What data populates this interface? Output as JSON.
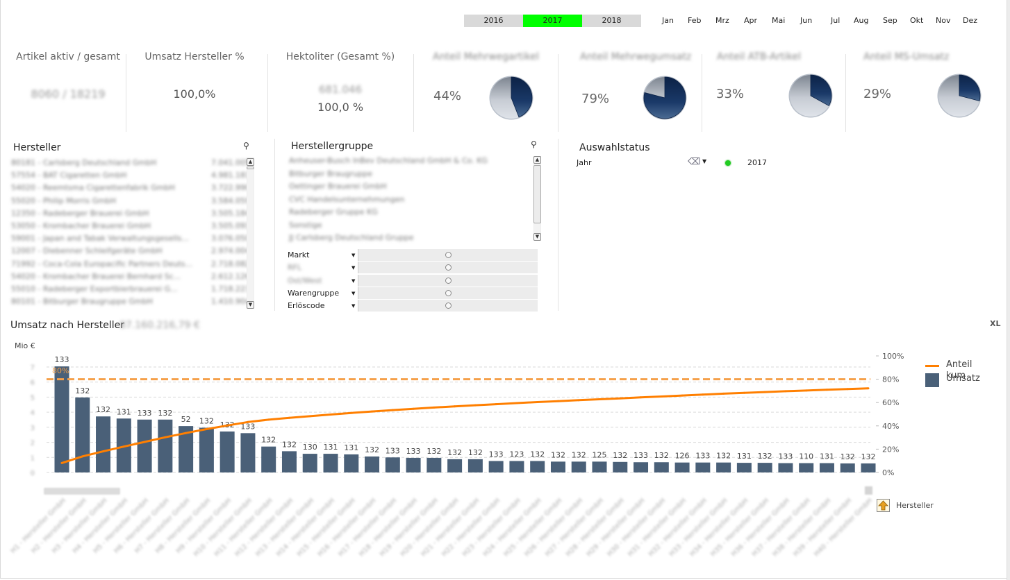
{
  "years": [
    {
      "label": "2016",
      "active": false
    },
    {
      "label": "2017",
      "active": true
    },
    {
      "label": "2018",
      "active": false
    }
  ],
  "months": [
    "Jan",
    "Feb",
    "Mrz",
    "Apr",
    "Mai",
    "Jun",
    "Jul",
    "Aug",
    "Sep",
    "Okt",
    "Nov",
    "Dez"
  ],
  "kpis": {
    "artikel": {
      "title": "Artikel aktiv / gesamt",
      "value": "8060 / 18219"
    },
    "umsatz": {
      "title": "Umsatz Hersteller %",
      "value": "100,0%"
    },
    "hektoliter": {
      "title": "Hektoliter (Gesamt %)",
      "value_blurred": "681.046",
      "value": "100,0 %"
    }
  },
  "pie_kpis": [
    {
      "title": "Anteil Mehrwegartikel",
      "percent_label": "44%",
      "share": 0.44
    },
    {
      "title": "Anteil Mehrwegumsatz",
      "percent_label": "79%",
      "share": 0.79
    },
    {
      "title": "Anteil ATB-Artikel",
      "percent_label": "33%",
      "share": 0.33
    },
    {
      "title": "Anteil MS-Umsatz",
      "percent_label": "29%",
      "share": 0.29
    }
  ],
  "pie_colors": {
    "dark": "#0f2a52",
    "light": "#d6dbe3"
  },
  "hersteller": {
    "title": "Hersteller",
    "items": [
      {
        "name": "80181 - Carlsberg Deutschland GmbH",
        "value": "7.041.005"
      },
      {
        "name": "57554 - BAT Cigaretten GmbH",
        "value": "4.981.181"
      },
      {
        "name": "54020 - Reemtsma Cigarettenfabrik GmbH",
        "value": "3.722.990"
      },
      {
        "name": "55020 - Philip Morris GmbH",
        "value": "3.584.059"
      },
      {
        "name": "12350 - Radeberger Brauerei GmbH",
        "value": "3.505.184"
      },
      {
        "name": "53050 - Krombacher Brauerei GmbH",
        "value": "3.505.091"
      },
      {
        "name": "59001 - Japan and Tabak Verwaltungsgesells...",
        "value": "3.076.050"
      },
      {
        "name": "12007 - Diebenner Schleifgeräte GmbH",
        "value": "2.974.004"
      },
      {
        "name": "71992 - Coca-Cola Europacific Partners Deuts...",
        "value": "2.718.082"
      },
      {
        "name": "54020 - Krombacher Brauerei Bernhard Sc...",
        "value": "2.612.126"
      },
      {
        "name": "55010 - Radeberger Exportbierbrauerei G...",
        "value": "1.718.223"
      },
      {
        "name": "80101 - Bitburger Braugruppe GmbH",
        "value": "1.410.904"
      }
    ]
  },
  "herstellergruppe": {
    "title": "Herstellergruppe",
    "items": [
      "Anheuser-Busch InBev Deutschland GmbH & Co. KG",
      "Bitburger Braugruppe",
      "Oettinger Brauerei GmbH",
      "CVC Handelsunternehmungen",
      "Radeberger Gruppe KG",
      "Sonstige",
      "JJ Carlsberg Deutschland Gruppe"
    ]
  },
  "filters": [
    {
      "label": "Markt",
      "blurred": false
    },
    {
      "label": "RFL",
      "blurred": true
    },
    {
      "label": "Ost/West",
      "blurred": true
    },
    {
      "label": "Warengruppe",
      "blurred": false
    },
    {
      "label": "Erlöscode",
      "blurred": false
    }
  ],
  "auswahlstatus": {
    "title": "Auswahlstatus",
    "field": "Jahr",
    "value": "2017",
    "indicator_color": "#22cc22"
  },
  "chart": {
    "title": "Umsatz nach Hersteller",
    "title_value": "87.160.216,79 €",
    "unit_label": "Mio  €",
    "xl_label": "XL",
    "dimension_label": "Hersteller"
  },
  "chart_data": {
    "type": "bar",
    "title": "Umsatz nach Hersteller",
    "xlabel": "Hersteller",
    "ylabel": "Mio €",
    "ylim": [
      0,
      7
    ],
    "y2lim": [
      0,
      1
    ],
    "y2_ticks": [
      "0%",
      "20%",
      "40%",
      "60%",
      "80%",
      "100%"
    ],
    "grid": true,
    "legend": "right",
    "reference_line": {
      "label": "80%",
      "value": 0.8,
      "color": "#f5a04a"
    },
    "categories": [
      "H1",
      "H2",
      "H3",
      "H4",
      "H5",
      "H6",
      "H7",
      "H8",
      "H9",
      "H10",
      "H11",
      "H12",
      "H13",
      "H14",
      "H15",
      "H16",
      "H17",
      "H18",
      "H19",
      "H20",
      "H21",
      "H22",
      "H23",
      "H24",
      "H25",
      "H26",
      "H27",
      "H28",
      "H29",
      "H30",
      "H31",
      "H32",
      "H33",
      "H34",
      "H35",
      "H36",
      "H37",
      "H38",
      "H39",
      "H40"
    ],
    "series": [
      {
        "name": "Umsatz",
        "type": "bar",
        "color": "#4a6078",
        "values": [
          7.04,
          4.98,
          3.72,
          3.58,
          3.51,
          3.51,
          3.08,
          2.97,
          2.72,
          2.61,
          1.72,
          1.41,
          1.24,
          1.24,
          1.2,
          1.06,
          1.0,
          0.97,
          0.97,
          0.88,
          0.88,
          0.76,
          0.76,
          0.76,
          0.72,
          0.72,
          0.72,
          0.7,
          0.68,
          0.68,
          0.66,
          0.66,
          0.66,
          0.64,
          0.64,
          0.62,
          0.62,
          0.62,
          0.6,
          0.6
        ],
        "labels": [
          "133",
          "132",
          "132",
          "131",
          "133",
          "132",
          "52",
          "132",
          "132",
          "133",
          "132",
          "132",
          "130",
          "131",
          "131",
          "132",
          "133",
          "133",
          "132",
          "132",
          "132",
          "133",
          "123",
          "132",
          "132",
          "132",
          "125",
          "132",
          "133",
          "132",
          "126",
          "133",
          "132",
          "131",
          "132",
          "133",
          "110",
          "131",
          "132",
          "132"
        ]
      },
      {
        "name": "Anteil kum",
        "type": "line",
        "color": "#ff7f00",
        "values": [
          0.081,
          0.138,
          0.181,
          0.222,
          0.262,
          0.302,
          0.338,
          0.372,
          0.403,
          0.433,
          0.453,
          0.469,
          0.483,
          0.497,
          0.511,
          0.523,
          0.535,
          0.546,
          0.557,
          0.567,
          0.577,
          0.586,
          0.595,
          0.604,
          0.612,
          0.62,
          0.628,
          0.636,
          0.644,
          0.652,
          0.66,
          0.668,
          0.676,
          0.683,
          0.69,
          0.697,
          0.703,
          0.71,
          0.716,
          0.722
        ]
      }
    ]
  }
}
